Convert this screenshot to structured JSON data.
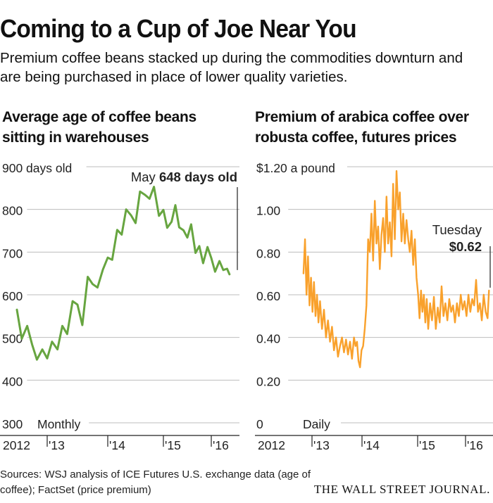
{
  "title": "Coming to a Cup of Joe Near You",
  "subtitle": "Premium coffee beans stacked up during the commodities downturn and are being purchased in place of lower quality varieties.",
  "source": "Sources: WSJ analysis of ICE Futures U.S. exchange data (age of coffee); FactSet (price premium)",
  "brand": "THE WALL STREET JOURNAL.",
  "colors": {
    "green": "#67a540",
    "orange": "#f9a12c",
    "grid": "#bdbdbd",
    "text": "#222222"
  },
  "chart_data": [
    {
      "type": "line",
      "title": "Average age of coffee beans sitting in warehouses",
      "ylabel": "days old",
      "frequency_label": "Monthly",
      "ylim": [
        300,
        900
      ],
      "yticks": [
        300,
        400,
        500,
        600,
        700,
        800,
        900
      ],
      "ytick_labels": [
        "300",
        "400",
        "500",
        "600",
        "700",
        "800",
        "900 days old"
      ],
      "xlim": [
        2012.0,
        2016.5
      ],
      "xticks": [
        2012,
        2013,
        2014,
        2015,
        2016
      ],
      "xtick_labels": [
        "2012",
        "'13",
        "'14",
        "'15",
        "'16"
      ],
      "annotation": {
        "prefix": "May ",
        "value": "648 days old"
      },
      "series": [
        {
          "name": "Average age",
          "color": "#67a540",
          "x": [
            2012.5,
            2012.58,
            2012.67,
            2012.75,
            2012.83,
            2012.92,
            2013.0,
            2013.08,
            2013.17,
            2013.25,
            2013.33,
            2013.42,
            2013.5,
            2013.58,
            2013.67,
            2013.75,
            2013.83,
            2013.92,
            2014.0,
            2014.08,
            2014.17,
            2014.25,
            2014.33,
            2014.42,
            2014.5,
            2014.58,
            2014.67,
            2014.75,
            2014.83,
            2014.92,
            2015.0,
            2015.08,
            2015.17,
            2015.25,
            2015.33,
            2015.42,
            2015.5,
            2015.58,
            2015.67,
            2015.75,
            2015.83,
            2015.92,
            2016.0,
            2016.08,
            2016.17,
            2016.25,
            2016.33,
            2016.38
          ],
          "values": [
            565,
            497,
            527,
            484,
            448,
            472,
            451,
            490,
            472,
            527,
            508,
            585,
            577,
            529,
            642,
            625,
            617,
            659,
            687,
            682,
            752,
            741,
            800,
            786,
            768,
            842,
            834,
            825,
            853,
            785,
            799,
            757,
            771,
            810,
            758,
            751,
            734,
            765,
            698,
            714,
            674,
            712,
            686,
            654,
            679,
            658,
            661,
            648
          ]
        }
      ]
    },
    {
      "type": "line",
      "title": "Premium of arabica coffee over robusta coffee, futures prices",
      "ylabel": "a pound",
      "frequency_label": "Daily",
      "ylim": [
        0,
        1.2
      ],
      "yticks": [
        0,
        0.2,
        0.4,
        0.6,
        0.8,
        1.0,
        1.2
      ],
      "ytick_labels": [
        "0",
        "0.20",
        "0.40",
        "0.60",
        "0.80",
        "1.00",
        "$1.20 a pound"
      ],
      "xlim": [
        2012.0,
        2016.5
      ],
      "xticks": [
        2012,
        2013,
        2014,
        2015,
        2016
      ],
      "xtick_labels": [
        "2012",
        "'13",
        "'14",
        "'15",
        "'16"
      ],
      "annotation": {
        "prefix": "Tuesday",
        "value": "$0.62"
      },
      "series": [
        {
          "name": "Arabica premium",
          "color": "#f9a12c",
          "x": [
            2012.83,
            2012.86,
            2012.89,
            2012.92,
            2012.95,
            2012.98,
            2013.01,
            2013.04,
            2013.07,
            2013.1,
            2013.13,
            2013.16,
            2013.2,
            2013.24,
            2013.28,
            2013.32,
            2013.36,
            2013.4,
            2013.44,
            2013.48,
            2013.52,
            2013.56,
            2013.6,
            2013.64,
            2013.68,
            2013.72,
            2013.76,
            2013.8,
            2013.84,
            2013.87,
            2013.9,
            2013.93,
            2013.96,
            2013.99,
            2014.02,
            2014.05,
            2014.08,
            2014.11,
            2014.14,
            2014.17,
            2014.2,
            2014.23,
            2014.26,
            2014.29,
            2014.32,
            2014.35,
            2014.38,
            2014.41,
            2014.44,
            2014.47,
            2014.5,
            2014.53,
            2014.56,
            2014.59,
            2014.62,
            2014.65,
            2014.68,
            2014.71,
            2014.74,
            2014.77,
            2014.8,
            2014.83,
            2014.86,
            2014.89,
            2014.92,
            2014.95,
            2014.98,
            2015.01,
            2015.04,
            2015.07,
            2015.1,
            2015.13,
            2015.16,
            2015.19,
            2015.22,
            2015.26,
            2015.3,
            2015.34,
            2015.38,
            2015.42,
            2015.46,
            2015.5,
            2015.54,
            2015.58,
            2015.62,
            2015.66,
            2015.7,
            2015.74,
            2015.78,
            2015.82,
            2015.86,
            2015.9,
            2015.94,
            2015.98,
            2016.02,
            2016.06,
            2016.1,
            2016.14,
            2016.18,
            2016.22,
            2016.26,
            2016.3,
            2016.34,
            2016.38,
            2016.42,
            2016.46,
            2016.49
          ],
          "values": [
            0.7,
            0.86,
            0.6,
            0.78,
            0.55,
            0.68,
            0.52,
            0.66,
            0.5,
            0.6,
            0.47,
            0.57,
            0.44,
            0.53,
            0.4,
            0.48,
            0.38,
            0.45,
            0.34,
            0.4,
            0.31,
            0.36,
            0.4,
            0.33,
            0.39,
            0.32,
            0.38,
            0.3,
            0.4,
            0.36,
            0.38,
            0.29,
            0.26,
            0.34,
            0.36,
            0.44,
            0.55,
            0.86,
            0.8,
            0.98,
            0.76,
            1.04,
            0.84,
            0.92,
            0.72,
            0.88,
            0.96,
            0.8,
            1.06,
            0.84,
            0.94,
            0.78,
            1.12,
            0.86,
            1.18,
            1.0,
            1.08,
            0.85,
            0.98,
            0.84,
            0.95,
            0.86,
            0.8,
            0.9,
            0.74,
            0.86,
            0.68,
            0.6,
            0.49,
            0.62,
            0.52,
            0.6,
            0.47,
            0.58,
            0.44,
            0.56,
            0.48,
            0.59,
            0.44,
            0.54,
            0.47,
            0.64,
            0.5,
            0.56,
            0.48,
            0.58,
            0.52,
            0.55,
            0.47,
            0.56,
            0.5,
            0.6,
            0.53,
            0.57,
            0.5,
            0.6,
            0.52,
            0.58,
            0.55,
            0.67,
            0.52,
            0.56,
            0.48,
            0.6,
            0.52,
            0.49,
            0.62
          ]
        }
      ]
    }
  ]
}
